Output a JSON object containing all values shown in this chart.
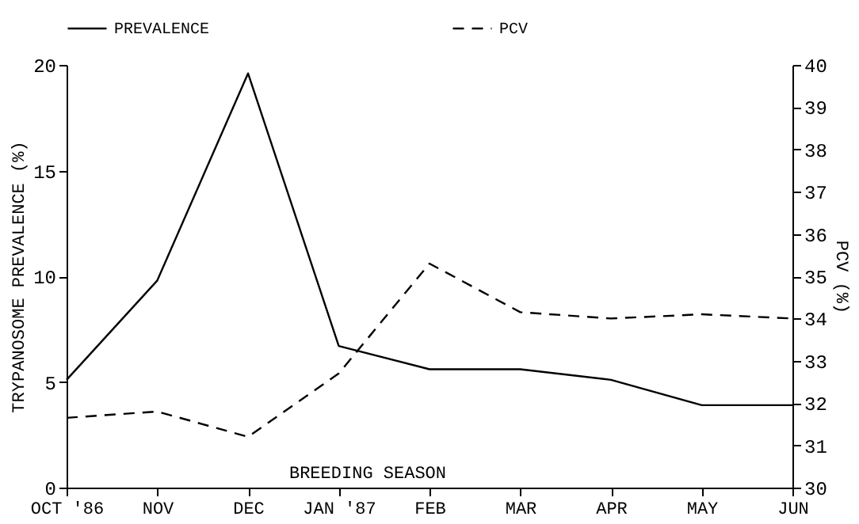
{
  "chart_data": {
    "type": "line",
    "categories": [
      "OCT '86",
      "NOV",
      "DEC",
      "JAN '87",
      "FEB",
      "MAR",
      "APR",
      "MAY",
      "JUN"
    ],
    "series": [
      {
        "name": "PREVALENCE",
        "color": "#000000",
        "line_style": "solid",
        "values": [
          5.1,
          9.8,
          19.6,
          6.7,
          5.6,
          5.6,
          5.1,
          3.9,
          3.9
        ]
      },
      {
        "name": "PCV",
        "color": "#000000",
        "line_style": "dashed",
        "axis": "y2",
        "values": [
          31.65,
          31.8,
          31.2,
          32.7,
          35.3,
          34.15,
          34.0,
          34.1,
          34.0
        ]
      }
    ],
    "ylabel": "TRYPANOSOME PREVALENCE (%)",
    "y2label": "PCV (%)",
    "ylim": [
      0,
      20
    ],
    "yticks": [
      0,
      5,
      10,
      15,
      20
    ],
    "y2lim": [
      30,
      40
    ],
    "y2ticks": [
      30,
      31,
      32,
      33,
      34,
      35,
      36,
      37,
      38,
      39,
      40
    ],
    "annotations": [
      "BREEDING SEASON"
    ],
    "legend": "top",
    "grid": false,
    "marker": "none"
  }
}
